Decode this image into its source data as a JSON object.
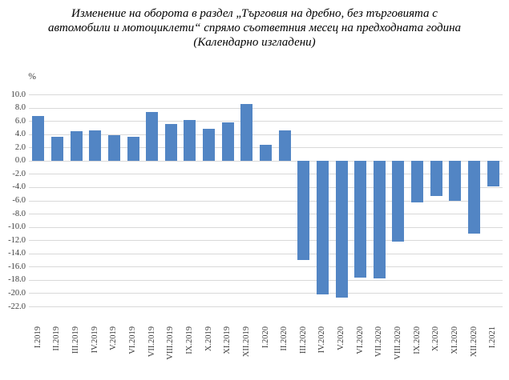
{
  "title": {
    "lines": [
      "Изменение на оборота в раздел „Търговия на дребно, без търговията с",
      "автомобили и мотоциклети“ спрямо съответния месец на предходната година",
      "(Календарно изгладени)"
    ]
  },
  "chart_data": {
    "type": "bar",
    "title": "Изменение на оборота в раздел „Търговия на дребно, без търговията с автомобили и мотоциклети“ спрямо съответния месец на предходната година (Календарно изгладени)",
    "unit_label": "%",
    "categories": [
      "I.2019",
      "II.2019",
      "III.2019",
      "IV.2019",
      "V.2019",
      "VI.2019",
      "VII.2019",
      "VIII.2019",
      "IX.2019",
      "X.2019",
      "XI.2019",
      "XII.2019",
      "I.2020",
      "II.2020",
      "III.2020",
      "IV.2020",
      "V.2020",
      "VI.2020",
      "VII.2020",
      "VIII.2020",
      "IX.2020",
      "X.2020",
      "XI.2020",
      "XII.2020",
      "I.2021"
    ],
    "values": [
      6.7,
      3.6,
      4.5,
      4.6,
      3.8,
      3.6,
      7.4,
      5.5,
      6.1,
      4.8,
      5.8,
      8.6,
      2.4,
      4.6,
      -15.0,
      -20.2,
      -20.7,
      -17.6,
      -17.8,
      -12.2,
      -6.3,
      -5.3,
      -6.1,
      -11.0,
      -3.9
    ],
    "xlabel": "",
    "ylabel": "%",
    "ylim": [
      -22,
      10
    ],
    "ytick_step": 2,
    "grid": true,
    "legend": false,
    "bar_color": "#5285C4",
    "gridline_color": "#D9D9D9",
    "axis_text_color": "#404040"
  }
}
